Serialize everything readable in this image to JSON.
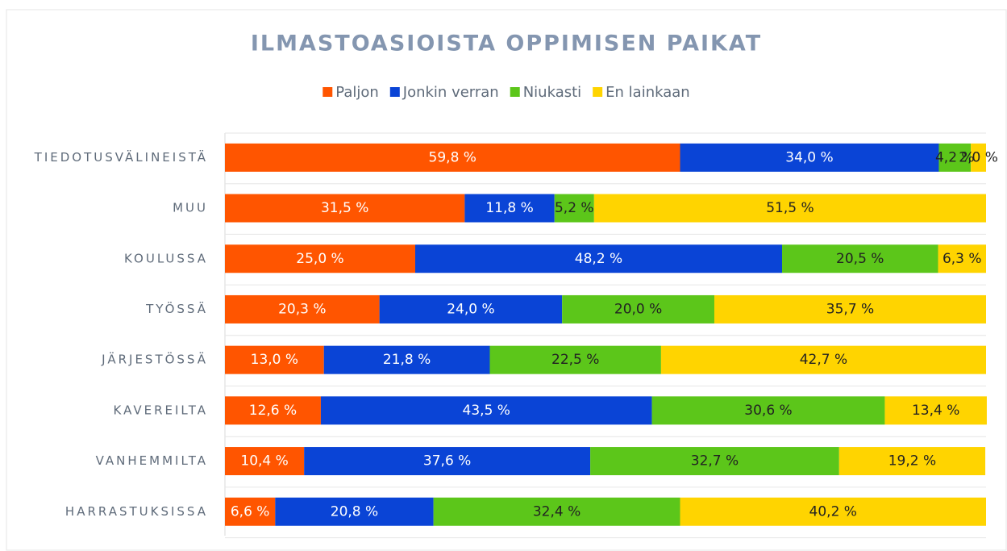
{
  "chart_data": {
    "type": "stacked-bar-horizontal",
    "title": "ILMASTOASIOISTA OPPIMISEN PAIKAT",
    "categories": [
      "TIEDOTUSVÄLINEISTÄ",
      "MUU",
      "KOULUSSA",
      "TYÖSSÄ",
      "JÄRJESTÖSSÄ",
      "KAVEREILTA",
      "VANHEMMILTA",
      "HARRASTUKSISSA"
    ],
    "xlim": [
      0,
      100
    ],
    "series": [
      {
        "name": "Paljon",
        "color": "#ff5500",
        "values": [
          59.8,
          31.5,
          25.0,
          20.3,
          13.0,
          12.6,
          10.4,
          6.6
        ],
        "value_labels": [
          "59,8 %",
          "31,5 %",
          "25,0 %",
          "20,3 %",
          "13,0 %",
          "12,6 %",
          "10,4 %",
          "6,6 %"
        ]
      },
      {
        "name": "Jonkin verran",
        "color": "#0a44d6",
        "values": [
          34.0,
          11.8,
          48.2,
          24.0,
          21.8,
          43.5,
          37.6,
          20.8
        ],
        "value_labels": [
          "34,0 %",
          "11,8 %",
          "48,2 %",
          "24,0 %",
          "21,8 %",
          "43,5 %",
          "37,6 %",
          "20,8 %"
        ]
      },
      {
        "name": "Niukasti",
        "color": "#5cc61a",
        "values": [
          4.2,
          5.2,
          20.5,
          20.0,
          22.5,
          30.6,
          32.7,
          32.4
        ],
        "value_labels": [
          "4,2 %",
          "5,2 %",
          "20,5 %",
          "20,0 %",
          "22,5 %",
          "30,6 %",
          "32,7 %",
          "32,4 %"
        ]
      },
      {
        "name": "En lainkaan",
        "color": "#ffd400",
        "values": [
          2.0,
          51.5,
          6.3,
          35.7,
          42.7,
          13.4,
          19.2,
          40.2
        ],
        "value_labels": [
          "2,0 %",
          "51,5 %",
          "6,3 %",
          "35,7 %",
          "42,7 %",
          "13,4 %",
          "19,2 %",
          "40,2 %"
        ]
      }
    ]
  }
}
